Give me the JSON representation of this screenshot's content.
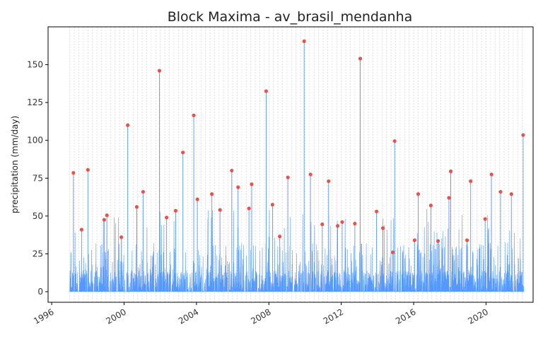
{
  "chart_data": {
    "type": "line",
    "title": "Block Maxima - av_brasil_mendanha",
    "xlabel": "",
    "ylabel": "precipitation (mm/day)",
    "x_range": [
      1995.8,
      2022.6
    ],
    "ylim": [
      -7,
      175
    ],
    "x_ticks": [
      1996,
      2000,
      2004,
      2008,
      2012,
      2016,
      2020
    ],
    "x_tick_labels": [
      "1996",
      "2000",
      "2004",
      "2008",
      "2012",
      "2016",
      "2020"
    ],
    "y_ticks": [
      0,
      25,
      50,
      75,
      100,
      125,
      150
    ],
    "y_tick_labels": [
      "0",
      "25",
      "50",
      "75",
      "100",
      "125",
      "150"
    ],
    "grid": "vertical dashed lines at each block boundary",
    "colors": {
      "series": "#5599ff",
      "maxima": "#e8524a",
      "grid": "#cccccc",
      "axis": "#000000"
    },
    "series": [
      {
        "name": "",
        "kind": "daily precipitation",
        "x_start": 1997.0,
        "x_end": 2022.1,
        "description_peaks": "dense daily series mostly below 30 mm/day with spikes up to the block maxima"
      },
      {
        "name": "",
        "kind": "block maxima",
        "x": [
          1997.2,
          1997.65,
          1998.0,
          1998.9,
          1999.05,
          1999.85,
          2000.2,
          2000.7,
          2001.05,
          2001.95,
          2002.35,
          2002.85,
          2003.25,
          2003.85,
          2004.05,
          2004.85,
          2005.3,
          2005.95,
          2006.3,
          2006.9,
          2007.05,
          2007.85,
          2008.2,
          2008.6,
          2009.05,
          2009.95,
          2010.3,
          2010.95,
          2011.3,
          2011.8,
          2012.05,
          2012.75,
          2013.05,
          2013.95,
          2014.3,
          2014.85,
          2014.95,
          2016.05,
          2016.25,
          2016.95,
          2017.35,
          2017.95,
          2018.05,
          2018.95,
          2019.15,
          2019.95,
          2020.3,
          2020.8,
          2021.4,
          2022.05
        ],
        "y": [
          78.5,
          41,
          80.5,
          47.5,
          50.5,
          36,
          110,
          56,
          66,
          146,
          49,
          53.5,
          92,
          116.5,
          61,
          64.5,
          54,
          80,
          69,
          55,
          71,
          132.5,
          57.5,
          36.5,
          75.5,
          165.5,
          77.5,
          44.5,
          73,
          43.5,
          46,
          45,
          154,
          53,
          42,
          26,
          99.5,
          34,
          64.5,
          57,
          33.5,
          62,
          79.5,
          34,
          73,
          48,
          77.5,
          66,
          64.5,
          103.5
        ]
      }
    ]
  }
}
